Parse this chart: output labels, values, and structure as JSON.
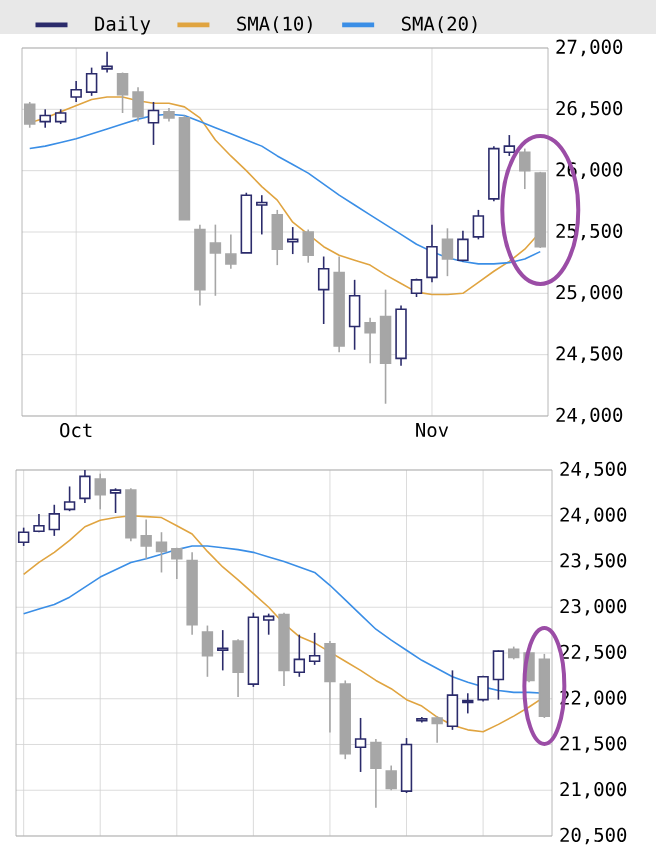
{
  "chart_data": [
    {
      "type": "candlestick",
      "legend": "top",
      "grid": true,
      "categories": [
        null,
        null,
        null,
        "Oct",
        null,
        null,
        null,
        null,
        null,
        null,
        null,
        null,
        null,
        null,
        null,
        null,
        null,
        null,
        null,
        null,
        null,
        null,
        null,
        null,
        null,
        null,
        "Nov",
        null,
        null,
        null,
        null,
        null,
        null,
        null
      ],
      "ylim": [
        24000,
        27000
      ],
      "yticks": [
        {
          "value": 24000,
          "label": "24,000"
        },
        {
          "value": 24500,
          "label": "24,500"
        },
        {
          "value": 25000,
          "label": "25,000"
        },
        {
          "value": 25500,
          "label": "25,500"
        },
        {
          "value": 26000,
          "label": "26,000"
        },
        {
          "value": 26500,
          "label": "26,500"
        },
        {
          "value": 27000,
          "label": "27,000"
        }
      ],
      "series": [
        {
          "type": "candlestick",
          "name": "Daily",
          "color": "#2b2b6b",
          "colors": [
            "#a6a6a6",
            "#2b2b6b",
            "#2b2b6b",
            "#2b2b6b",
            "#2b2b6b",
            "#2b2b6b",
            "#a6a6a6",
            "#a6a6a6",
            "#2b2b6b",
            "#a6a6a6",
            "#a6a6a6",
            "#a6a6a6",
            "#a6a6a6",
            "#a6a6a6",
            "#2b2b6b",
            "#2b2b6b",
            "#a6a6a6",
            "#2b2b6b",
            "#a6a6a6",
            "#2b2b6b",
            "#a6a6a6",
            "#2b2b6b",
            "#a6a6a6",
            "#a6a6a6",
            "#2b2b6b",
            "#2b2b6b",
            "#2b2b6b",
            "#a6a6a6",
            "#2b2b6b",
            "#2b2b6b",
            "#2b2b6b",
            "#2b2b6b",
            "#a6a6a6",
            "#a6a6a6"
          ],
          "ohlc": [
            [
              26540,
              26560,
              26350,
              26380
            ],
            [
              26400,
              26500,
              26350,
              26450
            ],
            [
              26400,
              26500,
              26380,
              26470
            ],
            [
              26600,
              26730,
              26560,
              26660
            ],
            [
              26640,
              26840,
              26610,
              26790
            ],
            [
              26830,
              26970,
              26800,
              26850
            ],
            [
              26790,
              26800,
              26470,
              26620
            ],
            [
              26640,
              26680,
              26400,
              26440
            ],
            [
              26390,
              26560,
              26210,
              26490
            ],
            [
              26480,
              26510,
              26400,
              26430
            ],
            [
              26430,
              26450,
              25600,
              25600
            ],
            [
              25520,
              25560,
              24900,
              25030
            ],
            [
              25410,
              25560,
              24980,
              25330
            ],
            [
              25320,
              25480,
              25200,
              25240
            ],
            [
              25330,
              25820,
              25330,
              25800
            ],
            [
              25720,
              25800,
              25480,
              25740
            ],
            [
              25640,
              25680,
              25230,
              25360
            ],
            [
              25420,
              25540,
              25320,
              25440
            ],
            [
              25500,
              25520,
              25250,
              25310
            ],
            [
              25030,
              25300,
              24750,
              25200
            ],
            [
              25170,
              25300,
              24520,
              24570
            ],
            [
              24730,
              25110,
              24540,
              24980
            ],
            [
              24760,
              24800,
              24430,
              24680
            ],
            [
              24810,
              25030,
              24100,
              24430
            ],
            [
              24470,
              24900,
              24410,
              24870
            ],
            [
              25000,
              25120,
              24970,
              25110
            ],
            [
              25130,
              25560,
              25090,
              25380
            ],
            [
              25440,
              25530,
              25140,
              25280
            ],
            [
              25270,
              25510,
              25260,
              25440
            ],
            [
              25460,
              25680,
              25440,
              25630
            ],
            [
              25770,
              26200,
              25750,
              26180
            ],
            [
              26150,
              26290,
              26120,
              26200
            ],
            [
              26150,
              26180,
              25850,
              26000
            ],
            [
              25980,
              25990,
              25370,
              25380
            ]
          ]
        },
        {
          "type": "line",
          "name": "SMA(10)",
          "color": "#e0a440",
          "values": [
            26390,
            26430,
            26480,
            26530,
            26580,
            26600,
            26600,
            26570,
            26550,
            26550,
            26520,
            26430,
            26250,
            26120,
            26000,
            25870,
            25760,
            25580,
            25480,
            25380,
            25310,
            25270,
            25230,
            25150,
            25080,
            25010,
            24990,
            24990,
            25000,
            25090,
            25180,
            25260,
            25360,
            25500
          ]
        },
        {
          "type": "line",
          "name": "SMA(20)",
          "color": "#3a8ee6",
          "values": [
            26180,
            26200,
            26230,
            26260,
            26300,
            26340,
            26380,
            26420,
            26450,
            26460,
            26450,
            26400,
            26350,
            26300,
            26250,
            26200,
            26120,
            26050,
            25980,
            25890,
            25800,
            25720,
            25640,
            25560,
            25480,
            25400,
            25340,
            25290,
            25260,
            25240,
            25240,
            25250,
            25280,
            25340
          ]
        }
      ]
    },
    {
      "type": "candlestick",
      "grid": true,
      "categories": [
        null,
        null,
        null,
        null,
        null,
        null,
        null,
        null,
        null,
        null,
        null,
        null,
        null,
        null,
        null,
        null,
        null,
        null,
        null,
        null,
        null,
        null,
        null,
        null,
        null,
        null,
        null,
        null,
        null,
        null,
        null,
        null,
        null,
        null,
        null
      ],
      "ylim": [
        20500,
        24500
      ],
      "yticks": [
        {
          "value": 20500,
          "label": "20,500"
        },
        {
          "value": 21000,
          "label": "21,000"
        },
        {
          "value": 21500,
          "label": "21,500"
        },
        {
          "value": 22000,
          "label": "22,000"
        },
        {
          "value": 22500,
          "label": "22,500"
        },
        {
          "value": 23000,
          "label": "23,000"
        },
        {
          "value": 23500,
          "label": "23,500"
        },
        {
          "value": 24000,
          "label": "24,000"
        },
        {
          "value": 24500,
          "label": "24,500"
        }
      ],
      "series": [
        {
          "type": "candlestick",
          "colors": [
            "#2b2b6b",
            "#2b2b6b",
            "#2b2b6b",
            "#2b2b6b",
            "#2b2b6b",
            "#a6a6a6",
            "#2b2b6b",
            "#a6a6a6",
            "#a6a6a6",
            "#a6a6a6",
            "#a6a6a6",
            "#a6a6a6",
            "#a6a6a6",
            "#2b2b6b",
            "#a6a6a6",
            "#2b2b6b",
            "#2b2b6b",
            "#a6a6a6",
            "#2b2b6b",
            "#2b2b6b",
            "#a6a6a6",
            "#a6a6a6",
            "#2b2b6b",
            "#a6a6a6",
            "#a6a6a6",
            "#2b2b6b",
            "#2b2b6b",
            "#a6a6a6",
            "#2b2b6b",
            "#2b2b6b",
            "#2b2b6b",
            "#2b2b6b",
            "#a6a6a6",
            "#a6a6a6",
            "#a6a6a6"
          ],
          "ohlc": [
            [
              23710,
              23870,
              23670,
              23820
            ],
            [
              23830,
              24020,
              23820,
              23890
            ],
            [
              23850,
              24120,
              23780,
              24020
            ],
            [
              24070,
              24320,
              24050,
              24150
            ],
            [
              24190,
              24500,
              24140,
              24430
            ],
            [
              24400,
              24460,
              24070,
              24230
            ],
            [
              24250,
              24300,
              24030,
              24280
            ],
            [
              24280,
              24300,
              23720,
              23760
            ],
            [
              23780,
              23960,
              23530,
              23670
            ],
            [
              23710,
              23820,
              23380,
              23610
            ],
            [
              23640,
              23650,
              23310,
              23530
            ],
            [
              23510,
              23600,
              22700,
              22810
            ],
            [
              22730,
              22800,
              22240,
              22470
            ],
            [
              22530,
              22750,
              22310,
              22550
            ],
            [
              22630,
              22650,
              22020,
              22290
            ],
            [
              22160,
              22940,
              22130,
              22890
            ],
            [
              22860,
              22930,
              22700,
              22900
            ],
            [
              22920,
              22940,
              22140,
              22310
            ],
            [
              22290,
              22700,
              22240,
              22430
            ],
            [
              22410,
              22720,
              22370,
              22470
            ],
            [
              22600,
              22630,
              21630,
              22190
            ],
            [
              22160,
              22200,
              21340,
              21400
            ],
            [
              21470,
              21790,
              21200,
              21560
            ],
            [
              21520,
              21560,
              20810,
              21240
            ],
            [
              21210,
              21270,
              21000,
              21020
            ],
            [
              20990,
              21570,
              20970,
              21500
            ],
            [
              21760,
              21800,
              21740,
              21780
            ],
            [
              21790,
              21810,
              21520,
              21730
            ],
            [
              21700,
              22310,
              21660,
              22040
            ],
            [
              21960,
              22060,
              21840,
              21980
            ],
            [
              21990,
              22250,
              21970,
              22240
            ],
            [
              22210,
              22530,
              21990,
              22520
            ],
            [
              22540,
              22570,
              22430,
              22450
            ],
            [
              22500,
              22560,
              22180,
              22200
            ],
            [
              22430,
              22490,
              21790,
              21810
            ]
          ]
        },
        {
          "type": "line",
          "color": "#e0a440",
          "values": [
            23360,
            23490,
            23600,
            23730,
            23880,
            23950,
            23980,
            24000,
            23990,
            23980,
            23890,
            23800,
            23610,
            23440,
            23300,
            23150,
            23000,
            22820,
            22680,
            22610,
            22510,
            22410,
            22310,
            22200,
            22110,
            21990,
            21920,
            21800,
            21710,
            21660,
            21640,
            21720,
            21810,
            21910,
            22020
          ]
        },
        {
          "type": "line",
          "color": "#3a8ee6",
          "values": [
            22930,
            22980,
            23030,
            23110,
            23220,
            23330,
            23410,
            23490,
            23530,
            23580,
            23630,
            23670,
            23670,
            23650,
            23630,
            23600,
            23550,
            23500,
            23440,
            23380,
            23240,
            23080,
            22920,
            22760,
            22640,
            22530,
            22420,
            22330,
            22240,
            22180,
            22130,
            22090,
            22070,
            22070,
            22060
          ]
        }
      ]
    }
  ]
}
